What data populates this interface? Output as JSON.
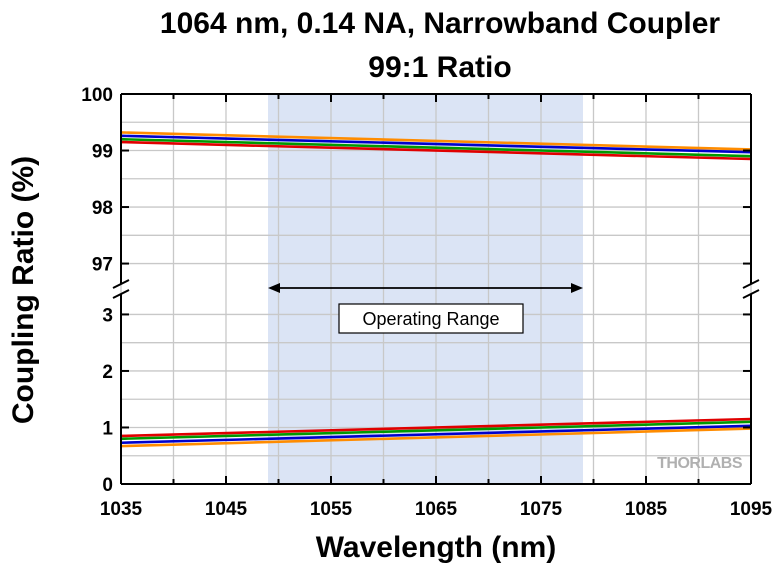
{
  "chart_data": {
    "type": "line",
    "title_line1": "1064 nm, 0.14 NA, Narrowband Coupler",
    "title_line2": "99:1 Ratio",
    "xlabel": "Wavelength (nm)",
    "ylabel": "Coupling Ratio (%)",
    "xlim": [
      1035,
      1095
    ],
    "x_ticks": [
      1035,
      1045,
      1055,
      1065,
      1075,
      1085,
      1095
    ],
    "broken_y_axis": true,
    "upper_panel": {
      "ylim": [
        96.55,
        100
      ],
      "y_ticks": [
        97,
        98,
        99,
        100
      ]
    },
    "lower_panel": {
      "ylim": [
        0,
        3.45
      ],
      "y_ticks": [
        0,
        1,
        2,
        3
      ]
    },
    "grid": true,
    "operating_range": {
      "x": [
        1049,
        1079
      ],
      "label": "Operating Range",
      "color": "#dbe4f5"
    },
    "series": [
      {
        "name": "orange",
        "color": "#ff8c00",
        "x": [
          1035,
          1095
        ],
        "upper": [
          99.32,
          99.02
        ],
        "lower": [
          0.67,
          0.98
        ]
      },
      {
        "name": "blue",
        "color": "#0000cc",
        "x": [
          1035,
          1095
        ],
        "upper": [
          99.26,
          98.97
        ],
        "lower": [
          0.73,
          1.03
        ]
      },
      {
        "name": "green",
        "color": "#009900",
        "x": [
          1035,
          1095
        ],
        "upper": [
          99.2,
          98.9
        ],
        "lower": [
          0.8,
          1.1
        ]
      },
      {
        "name": "red",
        "color": "#e00000",
        "x": [
          1035,
          1095
        ],
        "upper": [
          99.15,
          98.85
        ],
        "lower": [
          0.85,
          1.15
        ]
      }
    ],
    "watermark": "THORLABS"
  }
}
